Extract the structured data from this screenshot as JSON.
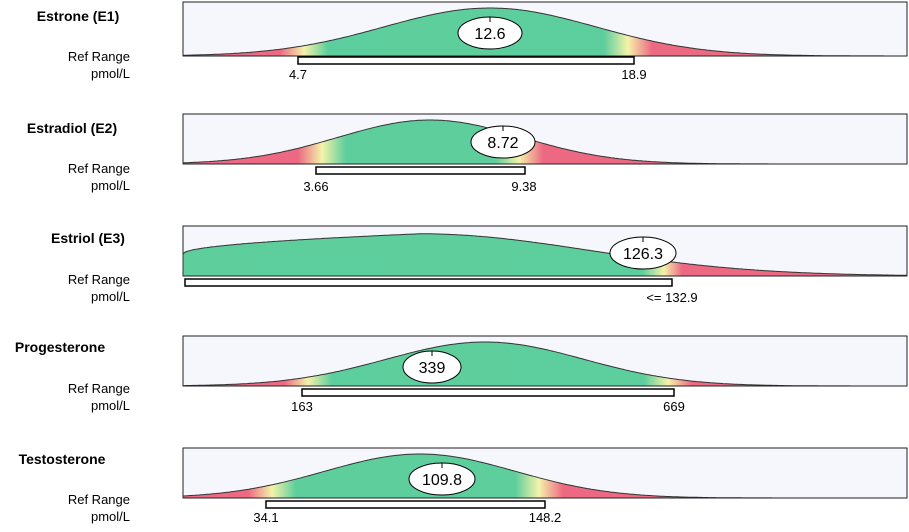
{
  "chart_data": {
    "type": "range-distribution",
    "ref_range_label": "Ref Range",
    "unit_label": "pmol/L",
    "panels": [
      {
        "name": "Estrone (E1)",
        "value": 12.6,
        "value_label": "12.6",
        "range_low": 4.7,
        "range_high": 18.9,
        "range_labels": [
          "4.7",
          "18.9"
        ]
      },
      {
        "name": "Estradiol (E2)",
        "value": 8.72,
        "value_label": "8.72",
        "range_low": 3.66,
        "range_high": 9.38,
        "range_labels": [
          "3.66",
          "9.38"
        ]
      },
      {
        "name": "Estriol (E3)",
        "value": 126.3,
        "value_label": "126.3",
        "range_low": null,
        "range_high": 132.9,
        "range_labels": [
          "<= 132.9"
        ]
      },
      {
        "name": "Progesterone",
        "value": 339,
        "value_label": "339",
        "range_low": 163,
        "range_high": 669,
        "range_labels": [
          "163",
          "669"
        ]
      },
      {
        "name": "Testosterone",
        "value": 109.8,
        "value_label": "109.8",
        "range_low": 34.1,
        "range_high": 148.2,
        "range_labels": [
          "34.1",
          "148.2"
        ]
      }
    ],
    "colors": {
      "in_range": "#4cc992",
      "edge": "#f4f2a0",
      "out_range": "#ec5a76",
      "panel_bg": "#f6f6fd"
    }
  }
}
